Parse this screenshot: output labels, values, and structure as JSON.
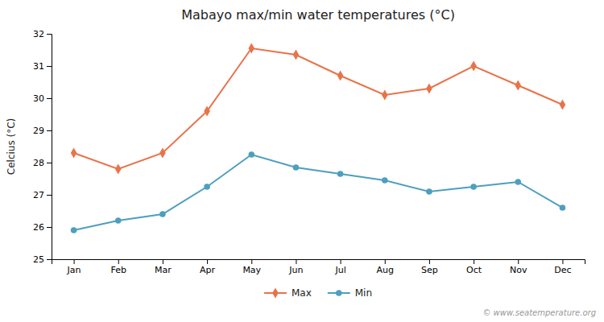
{
  "chart_data": {
    "type": "line",
    "title": "Mabayo max/min water temperatures (°C)",
    "y_label": "Celcius (°C)",
    "categories": [
      "Jan",
      "Feb",
      "Mar",
      "Apr",
      "May",
      "Jun",
      "Jul",
      "Aug",
      "Sep",
      "Oct",
      "Nov",
      "Dec"
    ],
    "series": [
      {
        "name": "Max",
        "color": "#e8734a",
        "marker": "diamond",
        "values": [
          28.3,
          27.8,
          28.3,
          29.6,
          31.55,
          31.35,
          30.7,
          30.1,
          30.3,
          31.0,
          30.4,
          29.8
        ]
      },
      {
        "name": "Min",
        "color": "#4d9fbe",
        "marker": "circle",
        "values": [
          25.9,
          26.2,
          26.4,
          27.25,
          28.25,
          27.85,
          27.65,
          27.45,
          27.1,
          27.25,
          27.4,
          26.6
        ]
      }
    ],
    "ylim": [
      25,
      32
    ],
    "yticks": [
      25,
      26,
      27,
      28,
      29,
      30,
      31,
      32
    ],
    "grid": false,
    "legend": "bottom",
    "annotations": [
      "© www.seatemperature.org"
    ]
  }
}
